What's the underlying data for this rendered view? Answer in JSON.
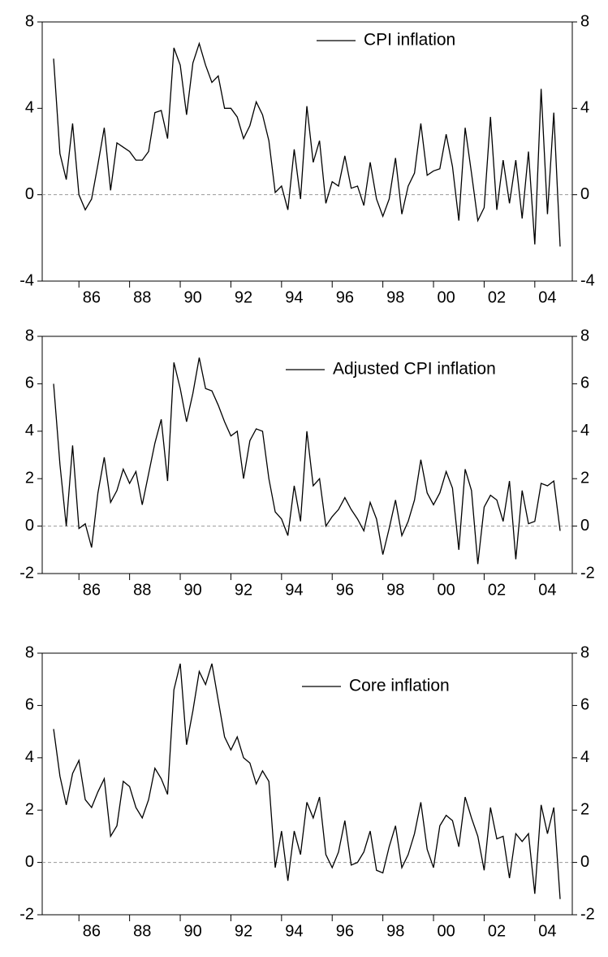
{
  "chart_data": [
    {
      "type": "line",
      "x": [
        1985,
        1985.25,
        1985.5,
        1985.75,
        1986,
        1986.25,
        1986.5,
        1986.75,
        1987,
        1987.25,
        1987.5,
        1987.75,
        1988,
        1988.25,
        1988.5,
        1988.75,
        1989,
        1989.25,
        1989.5,
        1989.75,
        1990,
        1990.25,
        1990.5,
        1990.75,
        1991,
        1991.25,
        1991.5,
        1991.75,
        1992,
        1992.25,
        1992.5,
        1992.75,
        1993,
        1993.25,
        1993.5,
        1993.75,
        1994,
        1994.25,
        1994.5,
        1994.75,
        1995,
        1995.25,
        1995.5,
        1995.75,
        1996,
        1996.25,
        1996.5,
        1996.75,
        1997,
        1997.25,
        1997.5,
        1997.75,
        1998,
        1998.25,
        1998.5,
        1998.75,
        1999,
        1999.25,
        1999.5,
        1999.75,
        2000,
        2000.25,
        2000.5,
        2000.75,
        2001,
        2001.25,
        2001.5,
        2001.75,
        2002,
        2002.25,
        2002.5,
        2002.75,
        2003,
        2003.25,
        2003.5,
        2003.75,
        2004,
        2004.25,
        2004.5,
        2004.75,
        2005
      ],
      "series": [
        {
          "name": "CPI inflation",
          "color": "#000000",
          "values": [
            6.3,
            1.9,
            0.7,
            3.3,
            0.0,
            -0.7,
            -0.2,
            1.4,
            3.1,
            0.2,
            2.4,
            2.2,
            2.0,
            1.6,
            1.6,
            2.0,
            3.8,
            3.9,
            2.6,
            6.8,
            6.0,
            3.7,
            6.1,
            7.0,
            6.0,
            5.2,
            5.5,
            4.0,
            4.0,
            3.6,
            2.6,
            3.2,
            4.3,
            3.7,
            2.5,
            0.1,
            0.4,
            -0.7,
            2.1,
            -0.2,
            4.1,
            1.5,
            2.5,
            -0.4,
            0.6,
            0.4,
            1.8,
            0.3,
            0.4,
            -0.5,
            1.5,
            -0.2,
            -1.0,
            -0.2,
            1.7,
            -0.9,
            0.4,
            1.0,
            3.3,
            0.9,
            1.1,
            1.2,
            2.8,
            1.3,
            -1.2,
            3.1,
            1.0,
            -1.2,
            -0.6,
            3.6,
            -0.7,
            1.6,
            -0.4,
            1.6,
            -1.1,
            2.0,
            -2.3,
            4.9,
            -0.9,
            3.8,
            -2.4
          ]
        }
      ],
      "xlim": [
        1984.55,
        2005.48
      ],
      "xticks": [
        {
          "value": 1986,
          "label": "86"
        },
        {
          "value": 1988,
          "label": "88"
        },
        {
          "value": 1990,
          "label": "90"
        },
        {
          "value": 1992,
          "label": "92"
        },
        {
          "value": 1994,
          "label": "94"
        },
        {
          "value": 1996,
          "label": "96"
        },
        {
          "value": 1998,
          "label": "98"
        },
        {
          "value": 2000,
          "label": "00"
        },
        {
          "value": 2002,
          "label": "02"
        },
        {
          "value": 2004,
          "label": "04"
        }
      ],
      "ylim": [
        -4,
        8
      ],
      "yticks": [
        -4,
        0,
        4,
        8
      ],
      "reference_line": 0
    },
    {
      "type": "line",
      "x": [
        1985,
        1985.25,
        1985.5,
        1985.75,
        1986,
        1986.25,
        1986.5,
        1986.75,
        1987,
        1987.25,
        1987.5,
        1987.75,
        1988,
        1988.25,
        1988.5,
        1988.75,
        1989,
        1989.25,
        1989.5,
        1989.75,
        1990,
        1990.25,
        1990.5,
        1990.75,
        1991,
        1991.25,
        1991.5,
        1991.75,
        1992,
        1992.25,
        1992.5,
        1992.75,
        1993,
        1993.25,
        1993.5,
        1993.75,
        1994,
        1994.25,
        1994.5,
        1994.75,
        1995,
        1995.25,
        1995.5,
        1995.75,
        1996,
        1996.25,
        1996.5,
        1996.75,
        1997,
        1997.25,
        1997.5,
        1997.75,
        1998,
        1998.25,
        1998.5,
        1998.75,
        1999,
        1999.25,
        1999.5,
        1999.75,
        2000,
        2000.25,
        2000.5,
        2000.75,
        2001,
        2001.25,
        2001.5,
        2001.75,
        2002,
        2002.25,
        2002.5,
        2002.75,
        2003,
        2003.25,
        2003.5,
        2003.75,
        2004,
        2004.25,
        2004.5,
        2004.75,
        2005
      ],
      "series": [
        {
          "name": "Adjusted CPI inflation",
          "color": "#000000",
          "values": [
            6.0,
            2.6,
            0.0,
            3.4,
            -0.1,
            0.1,
            -0.9,
            1.4,
            2.9,
            1.0,
            1.5,
            2.4,
            1.8,
            2.3,
            0.9,
            2.2,
            3.5,
            4.5,
            1.9,
            6.9,
            5.8,
            4.4,
            5.6,
            7.1,
            5.8,
            5.7,
            5.1,
            4.4,
            3.8,
            4.0,
            2.0,
            3.6,
            4.1,
            4.0,
            2.0,
            0.6,
            0.3,
            -0.4,
            1.7,
            0.2,
            4.0,
            1.7,
            2.0,
            0.0,
            0.4,
            0.7,
            1.2,
            0.7,
            0.3,
            -0.2,
            1.0,
            0.3,
            -1.2,
            -0.1,
            1.1,
            -0.4,
            0.2,
            1.1,
            2.8,
            1.4,
            0.9,
            1.4,
            2.3,
            1.6,
            -1.0,
            2.4,
            1.5,
            -1.6,
            0.8,
            1.3,
            1.1,
            0.2,
            1.9,
            -1.4,
            1.5,
            0.1,
            0.2,
            1.8,
            1.7,
            1.9,
            -0.2
          ]
        }
      ],
      "xlim": [
        1984.55,
        2005.48
      ],
      "xticks": [
        {
          "value": 1986,
          "label": "86"
        },
        {
          "value": 1988,
          "label": "88"
        },
        {
          "value": 1990,
          "label": "90"
        },
        {
          "value": 1992,
          "label": "92"
        },
        {
          "value": 1994,
          "label": "94"
        },
        {
          "value": 1996,
          "label": "96"
        },
        {
          "value": 1998,
          "label": "98"
        },
        {
          "value": 2000,
          "label": "00"
        },
        {
          "value": 2002,
          "label": "02"
        },
        {
          "value": 2004,
          "label": "04"
        }
      ],
      "ylim": [
        -2,
        8
      ],
      "yticks": [
        -2,
        0,
        2,
        4,
        6,
        8
      ],
      "reference_line": 0
    },
    {
      "type": "line",
      "x": [
        1985,
        1985.25,
        1985.5,
        1985.75,
        1986,
        1986.25,
        1986.5,
        1986.75,
        1987,
        1987.25,
        1987.5,
        1987.75,
        1988,
        1988.25,
        1988.5,
        1988.75,
        1989,
        1989.25,
        1989.5,
        1989.75,
        1990,
        1990.25,
        1990.5,
        1990.75,
        1991,
        1991.25,
        1991.5,
        1991.75,
        1992,
        1992.25,
        1992.5,
        1992.75,
        1993,
        1993.25,
        1993.5,
        1993.75,
        1994,
        1994.25,
        1994.5,
        1994.75,
        1995,
        1995.25,
        1995.5,
        1995.75,
        1996,
        1996.25,
        1996.5,
        1996.75,
        1997,
        1997.25,
        1997.5,
        1997.75,
        1998,
        1998.25,
        1998.5,
        1998.75,
        1999,
        1999.25,
        1999.5,
        1999.75,
        2000,
        2000.25,
        2000.5,
        2000.75,
        2001,
        2001.25,
        2001.5,
        2001.75,
        2002,
        2002.25,
        2002.5,
        2002.75,
        2003,
        2003.25,
        2003.5,
        2003.75,
        2004,
        2004.25,
        2004.5,
        2004.75,
        2005
      ],
      "series": [
        {
          "name": "Core inflation",
          "color": "#000000",
          "values": [
            5.1,
            3.3,
            2.2,
            3.4,
            3.9,
            2.4,
            2.1,
            2.7,
            3.2,
            1.0,
            1.4,
            3.1,
            2.9,
            2.1,
            1.7,
            2.4,
            3.6,
            3.2,
            2.6,
            6.6,
            7.6,
            4.5,
            5.8,
            7.3,
            6.8,
            7.6,
            6.2,
            4.8,
            4.3,
            4.8,
            4.0,
            3.8,
            3.0,
            3.5,
            3.1,
            -0.2,
            1.2,
            -0.7,
            1.2,
            0.3,
            2.3,
            1.7,
            2.5,
            0.3,
            -0.2,
            0.4,
            1.6,
            -0.1,
            0.0,
            0.4,
            1.2,
            -0.3,
            -0.4,
            0.6,
            1.4,
            -0.2,
            0.3,
            1.1,
            2.3,
            0.5,
            -0.2,
            1.4,
            1.8,
            1.6,
            0.6,
            2.5,
            1.7,
            1.0,
            -0.3,
            2.1,
            0.9,
            1.0,
            -0.6,
            1.1,
            0.8,
            1.1,
            -1.2,
            2.2,
            1.1,
            2.1,
            -1.4
          ]
        }
      ],
      "xlim": [
        1984.55,
        2005.48
      ],
      "xticks": [
        {
          "value": 1986,
          "label": "86"
        },
        {
          "value": 1988,
          "label": "88"
        },
        {
          "value": 1990,
          "label": "90"
        },
        {
          "value": 1992,
          "label": "92"
        },
        {
          "value": 1994,
          "label": "94"
        },
        {
          "value": 1996,
          "label": "96"
        },
        {
          "value": 1998,
          "label": "98"
        },
        {
          "value": 2000,
          "label": "00"
        },
        {
          "value": 2002,
          "label": "02"
        },
        {
          "value": 2004,
          "label": "04"
        }
      ],
      "ylim": [
        -2,
        8
      ],
      "yticks": [
        -2,
        0,
        2,
        4,
        6,
        8
      ],
      "reference_line": 0
    }
  ]
}
